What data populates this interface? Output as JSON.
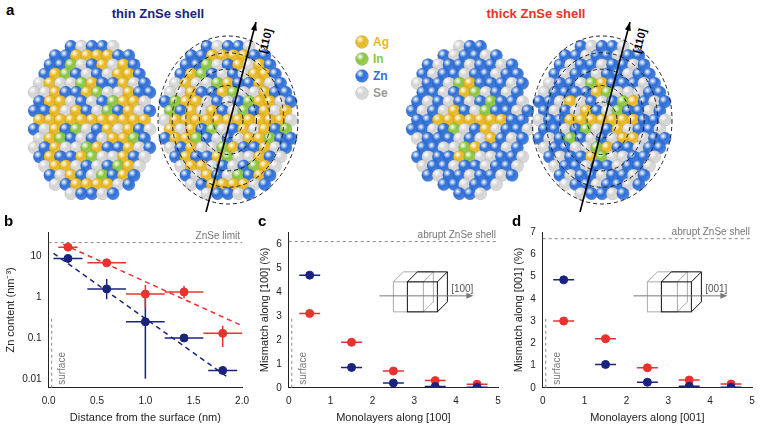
{
  "panel_a": {
    "title": "a",
    "left_title": "thin ZnSe shell",
    "left_color": "#1a237e",
    "right_title": "thick ZnSe shell",
    "right_color": "#e8322d",
    "direction_label": "[110]",
    "legend": [
      {
        "name": "Ag",
        "color": "#e8b820"
      },
      {
        "name": "In",
        "color": "#8cc63f"
      },
      {
        "name": "Zn",
        "color": "#2e6fd8"
      },
      {
        "name": "Se",
        "color": "#d4d4d4"
      }
    ]
  },
  "chart_data": [
    {
      "type": "scatter",
      "title": "b",
      "x_label": "Distance from the surface (nm)",
      "y_label": "Zn content (nm⁻³)",
      "log": "y",
      "grid": false,
      "xlim": [
        0,
        2
      ],
      "xticks": [
        {
          "value": 0,
          "label": "0.0"
        },
        0.5,
        {
          "value": 1,
          "label": "1.0"
        },
        1.5,
        {
          "value": 2,
          "label": "2.0"
        }
      ],
      "ylim": [
        0.006,
        40
      ],
      "yticks": [
        0.01,
        0.1,
        1,
        10
      ],
      "reference_lines": [
        {
          "axis": "y",
          "value": 22,
          "label": "ZnSe limit"
        },
        {
          "axis": "x",
          "value": 0,
          "label": "surface"
        }
      ],
      "series": [
        {
          "name": "thin ZnSe shell",
          "color": "#1a237e",
          "marker": "circle",
          "line_style": "none",
          "x": [
            0.2,
            0.6,
            1.0,
            1.4,
            1.8
          ],
          "values": [
            9,
            1.6,
            0.25,
            0.1,
            0.016
          ],
          "x_err": [
            0.15,
            0.2,
            0.2,
            0.2,
            0.15
          ],
          "y_low": [
            7,
            0.9,
            0.01,
            null,
            0.013
          ],
          "y_high": [
            11.5,
            2.8,
            1.0,
            null,
            0.019
          ]
        },
        {
          "name": "thick ZnSe shell",
          "color": "#e8322d",
          "marker": "circle",
          "line_style": "none",
          "x": [
            0.2,
            0.6,
            1.0,
            1.4,
            1.8
          ],
          "values": [
            17,
            7,
            1.2,
            1.35,
            0.13
          ],
          "x_err": [
            0.1,
            0.2,
            0.2,
            0.2,
            0.2
          ],
          "y_low": [
            null,
            null,
            0.55,
            0.95,
            0.06
          ],
          "y_high": [
            null,
            null,
            2.0,
            1.9,
            0.2
          ]
        },
        {
          "color": "#1a237e",
          "marker": "none",
          "line_style": "dashed",
          "x": [
            0.05,
            1.85
          ],
          "values": [
            12,
            0.011
          ]
        },
        {
          "color": "#e8322d",
          "marker": "none",
          "line_style": "dashed",
          "x": [
            0.15,
            2.0
          ],
          "values": [
            20,
            0.2
          ]
        }
      ]
    },
    {
      "type": "scatter",
      "title": "c",
      "x_label": "Monolayers along [100]",
      "y_label": "Mismatch along [100] (%)",
      "grid": false,
      "inset_label": "[100]",
      "xlim": [
        0,
        5
      ],
      "xticks": [
        0,
        1,
        2,
        3,
        4,
        5
      ],
      "ylim": [
        0,
        6.5
      ],
      "yticks": [
        0,
        1,
        2,
        3,
        4,
        5,
        6
      ],
      "reference_lines": [
        {
          "axis": "y",
          "value": 6.1,
          "label": "abrupt ZnSe shell"
        },
        {
          "axis": "x",
          "value": 0,
          "label": "surface"
        }
      ],
      "series": [
        {
          "name": "thin ZnSe shell",
          "color": "#1a237e",
          "marker": "circle",
          "line_style": "none",
          "x": [
            0.5,
            1.5,
            2.5,
            3.5,
            4.5
          ],
          "values": [
            4.7,
            0.85,
            0.2,
            0.05,
            0.02
          ],
          "x_err": [
            0.25,
            0.25,
            0.25,
            0.25,
            0.25
          ]
        },
        {
          "name": "thick ZnSe shell",
          "color": "#e8322d",
          "marker": "circle",
          "line_style": "none",
          "x": [
            0.5,
            1.5,
            2.5,
            3.5,
            4.5
          ],
          "values": [
            3.1,
            1.9,
            0.7,
            0.3,
            0.15
          ],
          "x_err": [
            0.25,
            0.25,
            0.25,
            0.25,
            0.25
          ]
        }
      ]
    },
    {
      "type": "scatter",
      "title": "d",
      "x_label": "Monolayers along [001]",
      "y_label": "Mismatch along [001] (%)",
      "grid": false,
      "inset_label": "[001]",
      "xlim": [
        0,
        5
      ],
      "xticks": [
        0,
        1,
        2,
        3,
        4,
        5
      ],
      "ylim": [
        0,
        7
      ],
      "yticks": [
        0,
        1,
        2,
        3,
        4,
        5,
        6,
        7
      ],
      "reference_lines": [
        {
          "axis": "y",
          "value": 6.7,
          "label": "abrupt ZnSe shell"
        },
        {
          "axis": "x",
          "value": 0,
          "label": "surface"
        }
      ],
      "series": [
        {
          "name": "thin ZnSe shell",
          "color": "#1a237e",
          "marker": "circle",
          "line_style": "none",
          "x": [
            0.5,
            1.5,
            2.5,
            3.5,
            4.5
          ],
          "values": [
            4.85,
            1.05,
            0.25,
            0.07,
            0.03
          ],
          "x_err": [
            0.25,
            0.25,
            0.25,
            0.25,
            0.25
          ]
        },
        {
          "name": "thick ZnSe shell",
          "color": "#e8322d",
          "marker": "circle",
          "line_style": "none",
          "x": [
            0.5,
            1.5,
            2.5,
            3.5,
            4.5
          ],
          "values": [
            3.0,
            2.2,
            0.9,
            0.35,
            0.17
          ],
          "x_err": [
            0.25,
            0.25,
            0.25,
            0.25,
            0.25
          ]
        }
      ]
    }
  ]
}
